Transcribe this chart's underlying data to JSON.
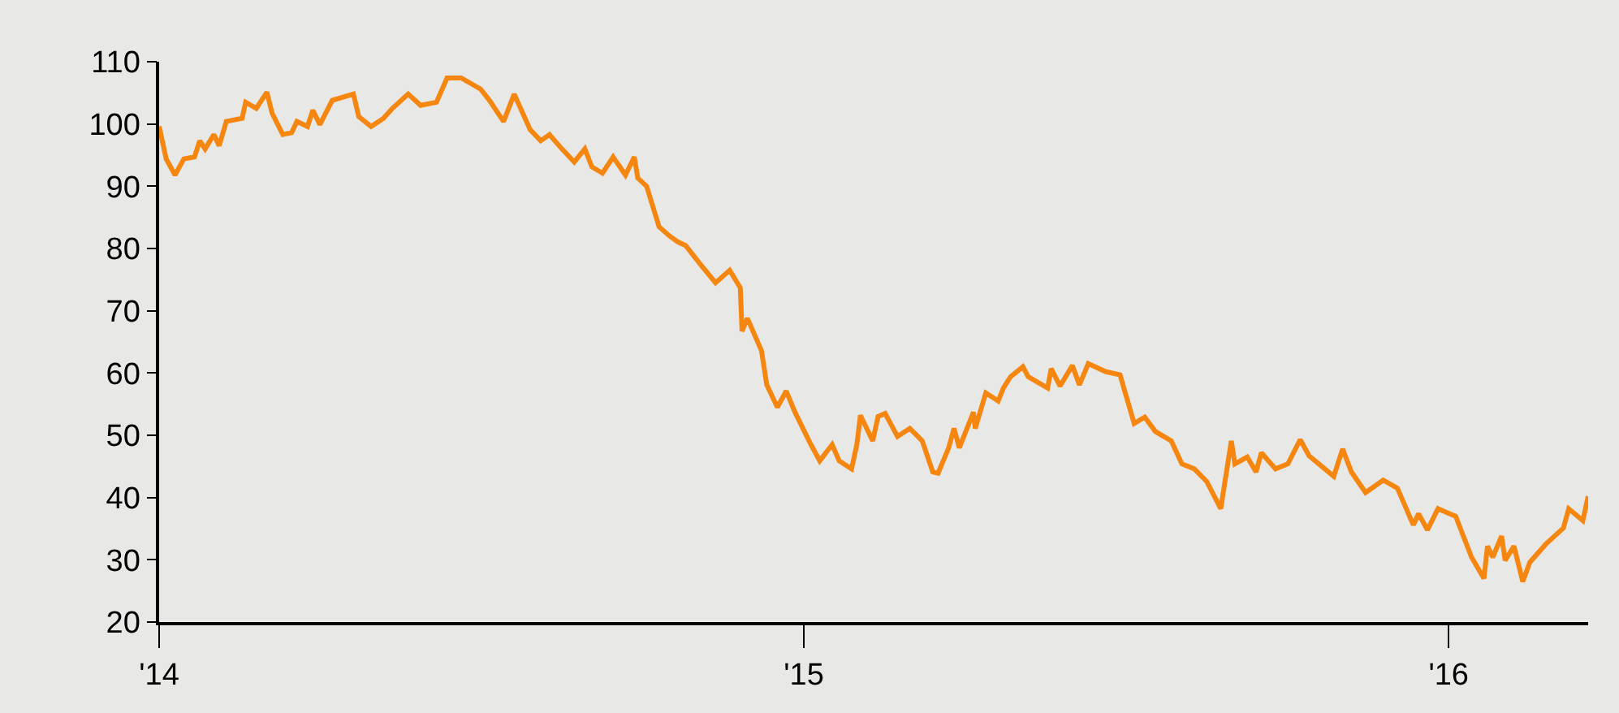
{
  "chart_data": {
    "type": "line",
    "x": [
      "2014-01-01",
      "2014-01-05",
      "2014-01-10",
      "2014-01-15",
      "2014-01-21",
      "2014-01-24",
      "2014-01-27",
      "2014-02-01",
      "2014-02-04",
      "2014-02-08",
      "2014-02-17",
      "2014-02-19",
      "2014-02-25",
      "2014-03-03",
      "2014-03-06",
      "2014-03-12",
      "2014-03-17",
      "2014-03-20",
      "2014-03-26",
      "2014-03-29",
      "2014-04-02",
      "2014-04-09",
      "2014-04-21",
      "2014-04-24",
      "2014-05-01",
      "2014-05-08",
      "2014-05-13",
      "2014-05-22",
      "2014-05-29",
      "2014-06-07",
      "2014-06-13",
      "2014-06-21",
      "2014-07-02",
      "2014-07-07",
      "2014-07-15",
      "2014-07-21",
      "2014-07-30",
      "2014-08-05",
      "2014-08-10",
      "2014-08-17",
      "2014-08-24",
      "2014-08-30",
      "2014-09-03",
      "2014-09-09",
      "2014-09-15",
      "2014-09-22",
      "2014-09-27",
      "2014-09-29",
      "2014-10-04",
      "2014-10-11",
      "2014-10-17",
      "2014-10-22",
      "2014-10-26",
      "2014-11-03",
      "2014-11-12",
      "2014-11-20",
      "2014-11-26",
      "2014-11-27",
      "2014-11-30",
      "2014-12-08",
      "2014-12-11",
      "2014-12-17",
      "2014-12-22",
      "2014-12-27",
      "2015-01-05",
      "2015-01-10",
      "2015-01-17",
      "2015-01-21",
      "2015-01-28",
      "2015-01-31",
      "2015-02-02",
      "2015-02-09",
      "2015-02-12",
      "2015-02-16",
      "2015-02-23",
      "2015-03-02",
      "2015-03-09",
      "2015-03-15",
      "2015-03-18",
      "2015-03-24",
      "2015-03-27",
      "2015-03-30",
      "2015-04-07",
      "2015-04-08",
      "2015-04-14",
      "2015-04-21",
      "2015-04-24",
      "2015-04-28",
      "2015-05-05",
      "2015-05-08",
      "2015-05-19",
      "2015-05-21",
      "2015-05-26",
      "2015-06-02",
      "2015-06-06",
      "2015-06-11",
      "2015-06-21",
      "2015-06-29",
      "2015-07-07",
      "2015-07-13",
      "2015-07-19",
      "2015-07-28",
      "2015-08-03",
      "2015-08-10",
      "2015-08-17",
      "2015-08-25",
      "2015-08-31",
      "2015-09-02",
      "2015-09-09",
      "2015-09-14",
      "2015-09-17",
      "2015-09-25",
      "2015-10-02",
      "2015-10-09",
      "2015-10-14",
      "2015-10-28",
      "2015-11-02",
      "2015-11-07",
      "2015-11-15",
      "2015-11-25",
      "2015-12-03",
      "2015-12-12",
      "2015-12-15",
      "2015-12-20",
      "2015-12-26",
      "2016-01-05",
      "2016-01-14",
      "2016-01-21",
      "2016-01-23",
      "2016-01-26",
      "2016-01-31",
      "2016-02-02",
      "2016-02-07",
      "2016-02-12",
      "2016-02-16",
      "2016-02-25",
      "2016-03-06",
      "2016-03-09",
      "2016-03-17",
      "2016-03-20"
    ],
    "series": [
      {
        "color": "#f5860f",
        "values": [
          99.6,
          94.4,
          91.8,
          94.4,
          94.7,
          97.3,
          96.0,
          98.3,
          96.5,
          100.4,
          100.9,
          103.5,
          102.5,
          105.1,
          101.7,
          98.3,
          98.6,
          100.4,
          99.6,
          102.2,
          99.9,
          103.8,
          104.8,
          101.2,
          99.6,
          100.9,
          102.5,
          104.8,
          103.0,
          103.5,
          107.4,
          107.4,
          105.6,
          103.8,
          100.4,
          104.8,
          99.1,
          97.3,
          98.3,
          96.0,
          93.9,
          96.0,
          93.1,
          92.1,
          94.7,
          91.8,
          94.7,
          91.3,
          90.0,
          83.5,
          82.0,
          81.0,
          80.5,
          77.6,
          74.5,
          76.5,
          73.7,
          66.7,
          68.8,
          63.6,
          58.1,
          54.5,
          57.1,
          53.7,
          48.5,
          45.9,
          48.5,
          45.9,
          44.6,
          48.5,
          53.2,
          49.1,
          53.0,
          53.5,
          49.8,
          51.1,
          49.1,
          44.1,
          43.9,
          48.0,
          51.1,
          48.0,
          53.7,
          51.1,
          56.8,
          55.5,
          57.6,
          59.4,
          61.0,
          59.4,
          57.6,
          60.7,
          57.9,
          61.2,
          58.1,
          61.5,
          60.2,
          59.7,
          51.9,
          52.9,
          50.6,
          49.1,
          45.4,
          44.6,
          42.6,
          38.2,
          49.1,
          45.4,
          46.5,
          44.1,
          47.2,
          44.6,
          45.4,
          49.3,
          46.7,
          43.4,
          47.8,
          44.1,
          40.8,
          42.8,
          41.5,
          35.6,
          37.4,
          34.8,
          38.2,
          37.0,
          30.4,
          27.0,
          32.2,
          30.4,
          33.8,
          29.9,
          32.2,
          26.5,
          29.6,
          32.5,
          35.1,
          38.2,
          36.3,
          40.2
        ]
      }
    ],
    "xlim": [
      "2014-01-01",
      "2016-03-20"
    ],
    "xticks": [
      {
        "value": "2014-01-01",
        "label": "'14"
      },
      {
        "value": "2015-01-01",
        "label": "'15"
      },
      {
        "value": "2016-01-01",
        "label": "'16"
      }
    ],
    "ylim": [
      20,
      110
    ],
    "yticks": [
      20,
      30,
      40,
      50,
      60,
      70,
      80,
      90,
      100,
      110
    ],
    "grid": false,
    "marker": "none",
    "line_style": "solid"
  }
}
